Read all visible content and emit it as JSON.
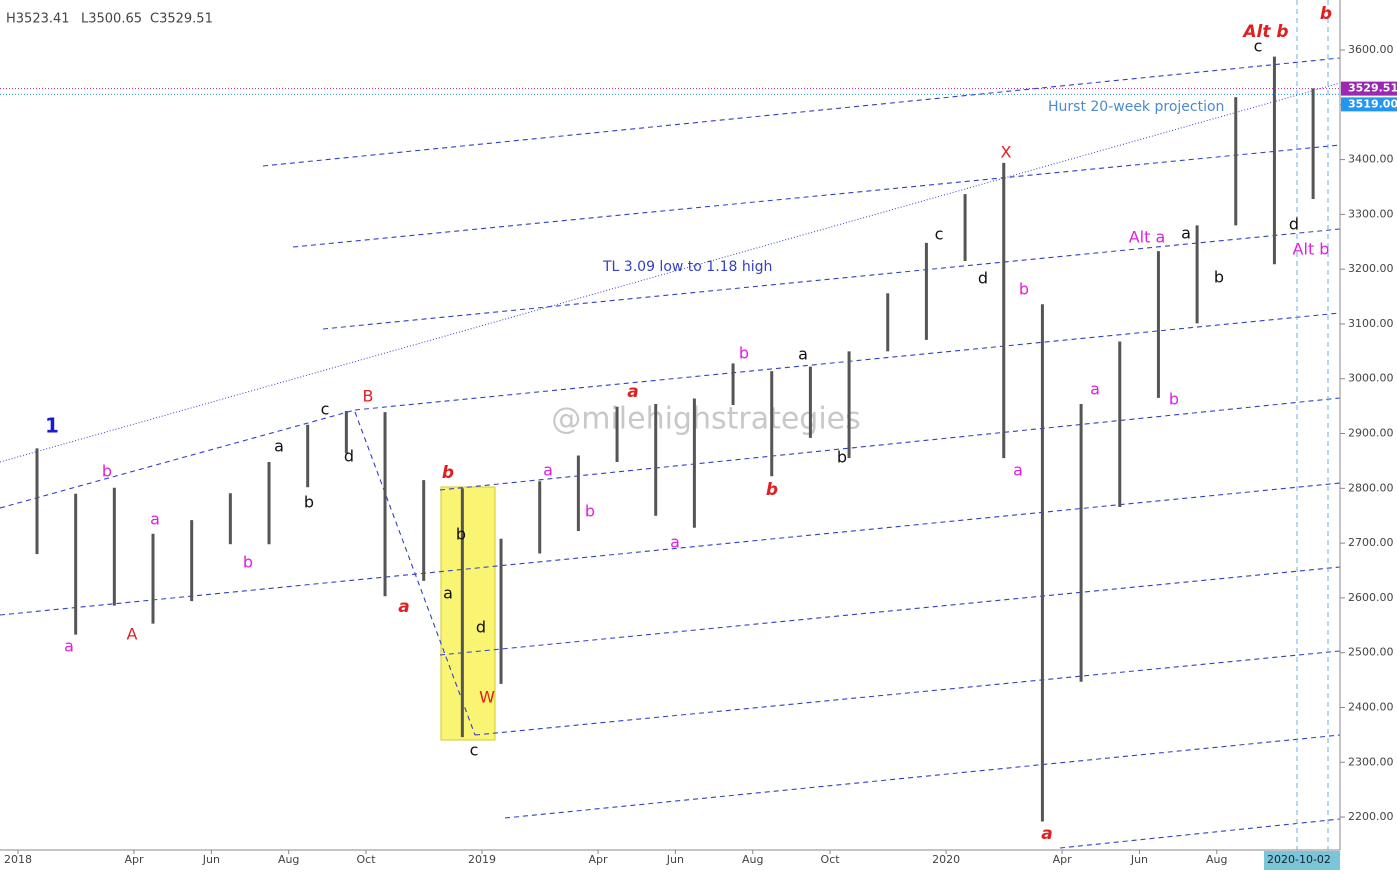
{
  "chart_data": {
    "type": "range",
    "header": [
      "H3523.41",
      "L3500.65",
      "C3529.51"
    ],
    "watermark": "@milehighstrategies",
    "notes": [
      "TL 3.09 low to 1.18 high",
      "Hurst 20-week projection"
    ],
    "x": [
      "2018-01",
      "2018-02",
      "2018-03",
      "2018-04",
      "2018-05",
      "2018-06",
      "2018-07",
      "2018-08",
      "2018-09",
      "2018-10",
      "2018-11",
      "2018-12",
      "2019-01",
      "2019-02",
      "2019-03",
      "2019-04",
      "2019-05",
      "2019-06",
      "2019-07",
      "2019-08",
      "2019-09",
      "2019-10",
      "2019-11",
      "2019-12",
      "2020-01",
      "2020-02",
      "2020-03",
      "2020-04",
      "2020-05",
      "2020-06",
      "2020-07",
      "2020-08",
      "2020-09",
      "2020-10"
    ],
    "high": [
      2873,
      2790,
      2801,
      2717,
      2742,
      2791,
      2848,
      2916,
      2941,
      2939,
      2815,
      2800,
      2708,
      2813,
      2860,
      2949,
      2954,
      2964,
      3028,
      3014,
      3022,
      3050,
      3156,
      3248,
      3337,
      3394,
      3136,
      2954,
      3068,
      3233,
      3280,
      3514,
      3588,
      3530
    ],
    "low": [
      2680,
      2533,
      2586,
      2553,
      2594,
      2698,
      2698,
      2802,
      2864,
      2603,
      2631,
      2346,
      2443,
      2681,
      2722,
      2848,
      2750,
      2728,
      2952,
      2822,
      2892,
      2855,
      3050,
      3071,
      3215,
      2855,
      2192,
      2447,
      2766,
      2965,
      3101,
      3280,
      3209,
      3328
    ],
    "color": "#555555",
    "ylim": [
      2144,
      3700
    ],
    "yticks": [
      {
        "value": 2200,
        "label": "2200.00"
      },
      {
        "value": 2300,
        "label": "2300.00"
      },
      {
        "value": 2400,
        "label": "2400.00"
      },
      {
        "value": 2500,
        "label": "2500.00"
      },
      {
        "value": 2600,
        "label": "2600.00"
      },
      {
        "value": 2700,
        "label": "2700.00"
      },
      {
        "value": 2800,
        "label": "2800.00"
      },
      {
        "value": 2900,
        "label": "2900.00"
      },
      {
        "value": 3000,
        "label": "3000.00"
      },
      {
        "value": 3100,
        "label": "3100.00"
      },
      {
        "value": 3200,
        "label": "3200.00"
      },
      {
        "value": 3300,
        "label": "3300.00"
      },
      {
        "value": 3400,
        "label": "3400.00"
      },
      {
        "value": 3500,
        "label": "3500.00"
      },
      {
        "value": 3600,
        "label": "3600.00"
      }
    ],
    "xticks": [
      {
        "value": "2018-01",
        "label": "2018"
      },
      {
        "value": "2018-04",
        "label": "Apr"
      },
      {
        "value": "2018-06",
        "label": "Jun"
      },
      {
        "value": "2018-08",
        "label": "Aug"
      },
      {
        "value": "2018-10",
        "label": "Oct"
      },
      {
        "value": "2019-01",
        "label": "2019"
      },
      {
        "value": "2019-04",
        "label": "Apr"
      },
      {
        "value": "2019-06",
        "label": "Jun"
      },
      {
        "value": "2019-08",
        "label": "Aug"
      },
      {
        "value": "2019-10",
        "label": "Oct"
      },
      {
        "value": "2020-01",
        "label": "2020"
      },
      {
        "value": "2020-04",
        "label": "Apr"
      },
      {
        "value": "2020-06",
        "label": "Jun"
      },
      {
        "value": "2020-08",
        "label": "Aug"
      }
    ],
    "cursor_date": "2020-10-02",
    "price_markers": [
      {
        "value": 3529.51,
        "label": "3529.51",
        "color": "#9c27b0"
      },
      {
        "value": 3519,
        "label": "3519.00",
        "color": "#2196f3"
      }
    ],
    "annotations": [
      {
        "text": "1",
        "color": "#1a1ad0"
      },
      {
        "text": "b",
        "color": "#e020e0"
      },
      {
        "text": "a",
        "color": "#e020e0"
      },
      {
        "text": "a",
        "color": "#e020e0"
      },
      {
        "text": "A",
        "color": "#e02020"
      },
      {
        "text": "b",
        "color": "#e020e0"
      },
      {
        "text": "a",
        "color": "#111111"
      },
      {
        "text": "b",
        "color": "#111111"
      },
      {
        "text": "c",
        "color": "#111111"
      },
      {
        "text": "d",
        "color": "#111111"
      },
      {
        "text": "B",
        "color": "#e02020"
      },
      {
        "text": "b",
        "color": "#e02020"
      },
      {
        "text": "a",
        "color": "#e02020"
      },
      {
        "text": "b",
        "color": "#111111"
      },
      {
        "text": "a",
        "color": "#111111"
      },
      {
        "text": "d",
        "color": "#111111"
      },
      {
        "text": "W",
        "color": "#e02020"
      },
      {
        "text": "c",
        "color": "#111111"
      },
      {
        "text": "a",
        "color": "#e020e0"
      },
      {
        "text": "b",
        "color": "#e020e0"
      },
      {
        "text": "a",
        "color": "#e02020"
      },
      {
        "text": "a",
        "color": "#e020e0"
      },
      {
        "text": "b",
        "color": "#e020e0"
      },
      {
        "text": "b",
        "color": "#e02020"
      },
      {
        "text": "a",
        "color": "#111111"
      },
      {
        "text": "b",
        "color": "#111111"
      },
      {
        "text": "c",
        "color": "#111111"
      },
      {
        "text": "d",
        "color": "#111111"
      },
      {
        "text": "X",
        "color": "#e02020"
      },
      {
        "text": "b",
        "color": "#e020e0"
      },
      {
        "text": "a",
        "color": "#e020e0"
      },
      {
        "text": "a",
        "color": "#e02020"
      },
      {
        "text": "a",
        "color": "#e020e0"
      },
      {
        "text": "b",
        "color": "#e020e0"
      },
      {
        "text": "Alt a",
        "color": "#e020e0"
      },
      {
        "text": "a",
        "color": "#111111"
      },
      {
        "text": "b",
        "color": "#111111"
      },
      {
        "text": "c",
        "color": "#111111"
      },
      {
        "text": "Alt b",
        "color": "#e02020"
      },
      {
        "text": "d",
        "color": "#111111"
      },
      {
        "text": "Alt b",
        "color": "#e020e0"
      },
      {
        "text": "b",
        "color": "#e02020"
      }
    ]
  }
}
